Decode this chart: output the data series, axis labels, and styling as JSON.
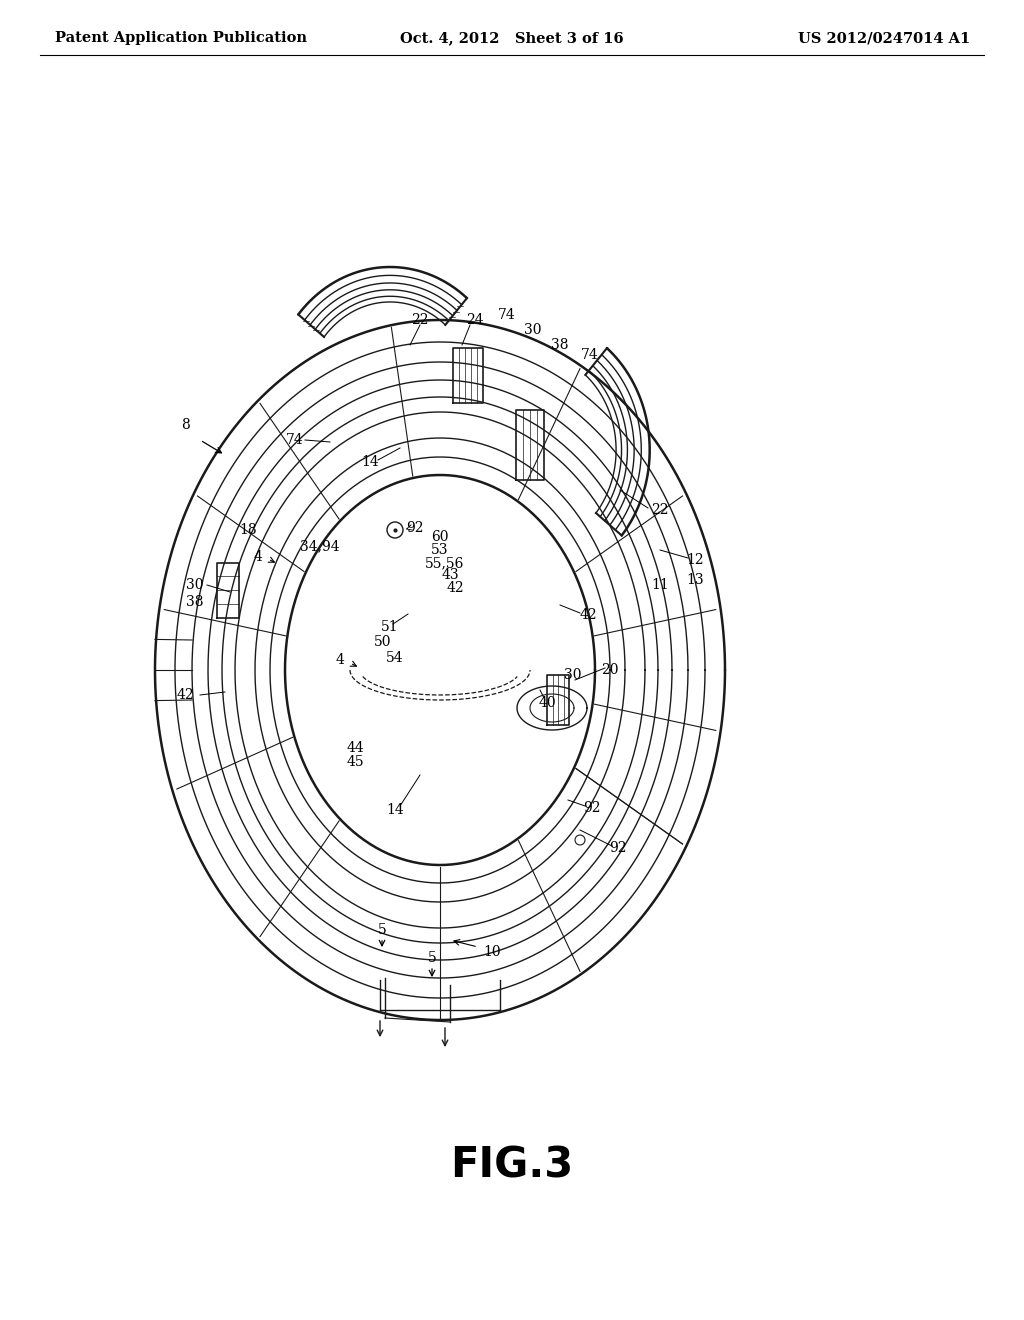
{
  "bg_color": "#ffffff",
  "line_color": "#1a1a1a",
  "header_left": "Patent Application Publication",
  "header_center": "Oct. 4, 2012   Sheet 3 of 16",
  "header_right": "US 2012/0247014 A1",
  "figure_label": "FIG.3",
  "header_fontsize": 10.5,
  "figure_label_fontsize": 30,
  "fig_label_weight": "bold",
  "lw_outer": 1.5,
  "lw_inner": 1.0,
  "lw_thin": 0.7,
  "label_fs": 10
}
